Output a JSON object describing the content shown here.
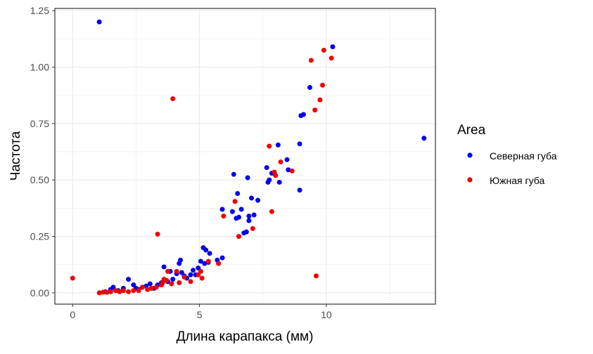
{
  "chart_data": {
    "type": "scatter",
    "xlabel": "Длина карапакса (мм)",
    "ylabel": "Частота",
    "xlim": [
      -0.7,
      14.3
    ],
    "ylim": [
      -0.05,
      1.26
    ],
    "x_ticks": [
      0,
      5,
      10
    ],
    "x_tick_labels": [
      "0",
      "5",
      "10"
    ],
    "y_ticks": [
      0,
      0.25,
      0.5,
      0.75,
      1.0,
      1.25
    ],
    "y_tick_labels": [
      "0.00",
      "0.25",
      "0.50",
      "0.75",
      "1.00",
      "1.25"
    ],
    "grid": true,
    "legend": {
      "title": "Area",
      "position": "right"
    },
    "series": [
      {
        "name": "Северная губа",
        "color": "#0000ee",
        "points": [
          [
            1.05,
            1.2
          ],
          [
            13.85,
            0.685
          ],
          [
            10.25,
            1.09
          ],
          [
            9.35,
            0.91
          ],
          [
            9.1,
            0.79
          ],
          [
            9.0,
            0.785
          ],
          [
            8.95,
            0.66
          ],
          [
            8.95,
            0.455
          ],
          [
            8.45,
            0.59
          ],
          [
            8.1,
            0.655
          ],
          [
            8.15,
            0.49
          ],
          [
            8.5,
            0.545
          ],
          [
            7.95,
            0.53
          ],
          [
            7.85,
            0.53
          ],
          [
            7.75,
            0.5
          ],
          [
            7.65,
            0.555
          ],
          [
            7.7,
            0.49
          ],
          [
            7.3,
            0.41
          ],
          [
            6.9,
            0.51
          ],
          [
            6.95,
            0.34
          ],
          [
            7.15,
            0.345
          ],
          [
            6.85,
            0.27
          ],
          [
            6.75,
            0.265
          ],
          [
            6.95,
            0.32
          ],
          [
            7.05,
            0.42
          ],
          [
            6.65,
            0.37
          ],
          [
            6.55,
            0.335
          ],
          [
            6.45,
            0.33
          ],
          [
            6.35,
            0.525
          ],
          [
            6.5,
            0.44
          ],
          [
            5.9,
            0.37
          ],
          [
            6.3,
            0.36
          ],
          [
            5.7,
            0.145
          ],
          [
            5.9,
            0.155
          ],
          [
            5.15,
            0.2
          ],
          [
            5.25,
            0.19
          ],
          [
            5.4,
            0.175
          ],
          [
            5.35,
            0.135
          ],
          [
            5.2,
            0.13
          ],
          [
            5.05,
            0.14
          ],
          [
            4.95,
            0.11
          ],
          [
            4.75,
            0.1
          ],
          [
            4.85,
            0.08
          ],
          [
            4.65,
            0.08
          ],
          [
            4.5,
            0.065
          ],
          [
            4.4,
            0.075
          ],
          [
            4.25,
            0.145
          ],
          [
            4.2,
            0.13
          ],
          [
            4.3,
            0.09
          ],
          [
            4.1,
            0.085
          ],
          [
            3.95,
            0.06
          ],
          [
            3.85,
            0.095
          ],
          [
            3.75,
            0.05
          ],
          [
            3.6,
            0.115
          ],
          [
            3.5,
            0.045
          ],
          [
            3.35,
            0.035
          ],
          [
            3.2,
            0.02
          ],
          [
            3.05,
            0.04
          ],
          [
            2.9,
            0.03
          ],
          [
            2.75,
            0.025
          ],
          [
            2.6,
            0.015
          ],
          [
            2.5,
            0.02
          ],
          [
            2.4,
            0.035
          ],
          [
            2.2,
            0.06
          ],
          [
            2.0,
            0.02
          ],
          [
            1.8,
            0.01
          ],
          [
            1.6,
            0.025
          ],
          [
            1.5,
            0.015
          ],
          [
            1.3,
            0.005
          ]
        ]
      },
      {
        "name": "Южная губа",
        "color": "#ee0000",
        "points": [
          [
            0.0,
            0.065
          ],
          [
            3.95,
            0.86
          ],
          [
            3.35,
            0.26
          ],
          [
            9.6,
            0.075
          ],
          [
            9.9,
            1.075
          ],
          [
            10.2,
            1.04
          ],
          [
            9.4,
            1.03
          ],
          [
            9.85,
            0.92
          ],
          [
            9.75,
            0.855
          ],
          [
            9.55,
            0.81
          ],
          [
            8.65,
            0.54
          ],
          [
            7.75,
            0.65
          ],
          [
            7.85,
            0.36
          ],
          [
            8.0,
            0.52
          ],
          [
            8.2,
            0.58
          ],
          [
            7.95,
            0.535
          ],
          [
            7.1,
            0.285
          ],
          [
            6.55,
            0.25
          ],
          [
            6.4,
            0.405
          ],
          [
            5.95,
            0.34
          ],
          [
            5.75,
            0.13
          ],
          [
            5.35,
            0.14
          ],
          [
            5.05,
            0.095
          ],
          [
            5.1,
            0.065
          ],
          [
            4.95,
            0.08
          ],
          [
            4.65,
            0.05
          ],
          [
            4.4,
            0.07
          ],
          [
            4.2,
            0.045
          ],
          [
            4.1,
            0.095
          ],
          [
            3.9,
            0.04
          ],
          [
            3.75,
            0.095
          ],
          [
            3.7,
            0.055
          ],
          [
            3.6,
            0.06
          ],
          [
            3.55,
            0.045
          ],
          [
            3.5,
            0.035
          ],
          [
            3.3,
            0.025
          ],
          [
            3.1,
            0.02
          ],
          [
            2.95,
            0.015
          ],
          [
            2.75,
            0.025
          ],
          [
            2.6,
            0.01
          ],
          [
            2.4,
            0.01
          ],
          [
            2.2,
            0.005
          ],
          [
            2.0,
            0.01
          ],
          [
            1.85,
            0.005
          ],
          [
            1.7,
            0.01
          ],
          [
            1.5,
            0.005
          ],
          [
            1.35,
            0.002
          ],
          [
            1.2,
            0.003
          ],
          [
            1.05,
            0.0
          ]
        ]
      }
    ]
  }
}
